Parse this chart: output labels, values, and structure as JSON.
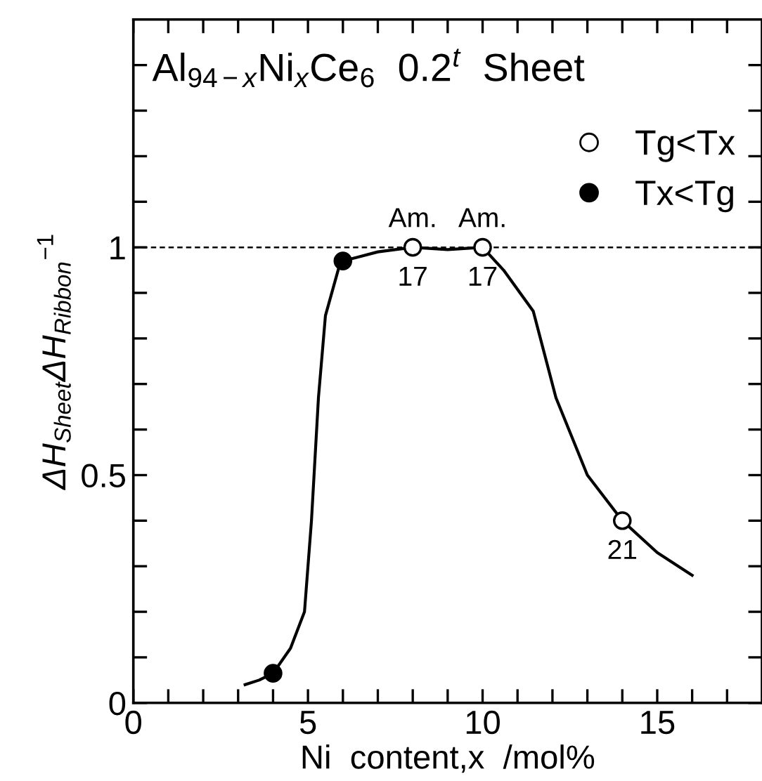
{
  "chart_data": {
    "type": "scatter",
    "title": "Al$_{94−x}$Ni$_{x}$Ce$_{6}$  0.2$^{t}$  Sheet",
    "xlabel": "Ni  content,x  /mol%",
    "ylabel": "ΔH$_{Sheet}$ΔH$_{Ribbon}$$^{−1}$",
    "series": [
      {
        "type": "line",
        "color": "#000000",
        "marker": "none",
        "x": [
          3.2,
          3.6,
          4.0,
          4.5,
          4.9,
          5.1,
          5.3,
          5.5,
          5.9,
          6.0,
          7.0,
          8.0,
          9.0,
          10.0,
          10.6,
          11.45,
          12.1,
          13.0,
          14.0,
          15.0,
          16.0
        ],
        "values": [
          0.04,
          0.05,
          0.065,
          0.12,
          0.2,
          0.4,
          0.67,
          0.85,
          0.96,
          0.97,
          0.99,
          1.0,
          0.995,
          1.0,
          0.95,
          0.86,
          0.67,
          0.5,
          0.4,
          0.33,
          0.28
        ]
      },
      {
        "name": "Tg<Tx",
        "color": "#ffffff",
        "marker": "circle",
        "x": [
          8,
          10,
          14
        ],
        "values": [
          1.0,
          1.0,
          0.4
        ]
      },
      {
        "name": "Tx<Tg",
        "color": "#000000",
        "marker": "circle",
        "x": [
          4,
          6
        ],
        "values": [
          0.065,
          0.97
        ]
      }
    ],
    "ref_lines": [
      {
        "axis": "y",
        "value": 1,
        "line_style": "dashed",
        "color": "#000000"
      }
    ],
    "annotations": [
      {
        "text": "Am.",
        "x": 8,
        "y": 1.0
      },
      {
        "text": "Am.",
        "x": 10,
        "y": 1.0
      },
      {
        "text": "17",
        "x": 8,
        "y": 1.0
      },
      {
        "text": "17",
        "x": 10,
        "y": 1.0
      },
      {
        "text": "21",
        "x": 14,
        "y": 0.4
      }
    ],
    "xlim": [
      0,
      18
    ],
    "ylim": [
      0,
      1.5
    ],
    "xticks": [
      0,
      {
        "value": 1,
        "label": null
      },
      {
        "value": 2,
        "label": null
      },
      {
        "value": 3,
        "label": null
      },
      {
        "value": 4,
        "label": null
      },
      5,
      {
        "value": 6,
        "label": null
      },
      {
        "value": 7,
        "label": null
      },
      {
        "value": 8,
        "label": null
      },
      {
        "value": 9,
        "label": null
      },
      10,
      {
        "value": 11,
        "label": null
      },
      {
        "value": 12,
        "label": null
      },
      {
        "value": 13,
        "label": null
      },
      {
        "value": 14,
        "label": null
      },
      15,
      {
        "value": 16,
        "label": null
      },
      {
        "value": 17,
        "label": null
      }
    ],
    "yticks": [
      0,
      {
        "value": 0.1,
        "label": null
      },
      {
        "value": 0.2,
        "label": null
      },
      {
        "value": 0.3,
        "label": null
      },
      {
        "value": 0.4,
        "label": null
      },
      0.5,
      {
        "value": 0.6,
        "label": null
      },
      {
        "value": 0.7,
        "label": null
      },
      {
        "value": 0.8,
        "label": null
      },
      {
        "value": 0.9,
        "label": null
      },
      1,
      {
        "value": 1.1,
        "label": null
      },
      {
        "value": 1.2,
        "label": null
      },
      {
        "value": 1.3,
        "label": null
      },
      {
        "value": 1.4,
        "label": null
      }
    ],
    "grid": false,
    "legend": "top right"
  }
}
